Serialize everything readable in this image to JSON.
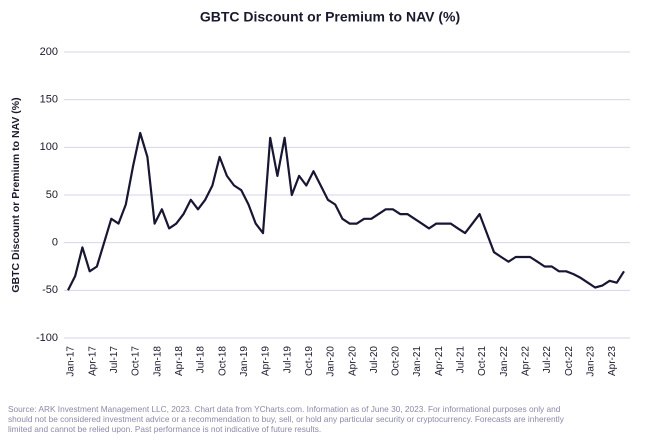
{
  "chart_data": {
    "type": "line",
    "title": "GBTC Discount or Premium to NAV (%)",
    "y_label": "GBTC Discount or Premium to NAV (%)",
    "categories": [
      "Jan-17",
      null,
      null,
      "Apr-17",
      null,
      null,
      "Jul-17",
      null,
      null,
      "Oct-17",
      null,
      null,
      "Jan-18",
      null,
      null,
      "Apr-18",
      null,
      null,
      "Jul-18",
      null,
      null,
      "Oct-18",
      null,
      null,
      "Jan-19",
      null,
      null,
      "Apr-19",
      null,
      null,
      "Jul-19",
      null,
      null,
      "Oct-19",
      null,
      null,
      "Jan-20",
      null,
      null,
      "Apr-20",
      null,
      null,
      "Jul-20",
      null,
      null,
      "Oct-20",
      null,
      null,
      "Jan-21",
      null,
      null,
      "Apr-21",
      null,
      null,
      "Jul-21",
      null,
      null,
      "Oct-21",
      null,
      null,
      "Jan-22",
      null,
      null,
      "Apr-22",
      null,
      null,
      "Jul-22",
      null,
      null,
      "Oct-22",
      null,
      null,
      "Jan-23",
      null,
      null,
      "Apr-23",
      null,
      null
    ],
    "series": [
      {
        "name": "GBTC Discount or Premium to NAV",
        "color": "#171733",
        "values": [
          -50,
          -35,
          -5,
          -30,
          -25,
          0,
          25,
          20,
          40,
          80,
          115,
          90,
          20,
          35,
          15,
          20,
          30,
          45,
          35,
          45,
          60,
          90,
          70,
          60,
          55,
          40,
          20,
          10,
          110,
          70,
          110,
          50,
          70,
          60,
          75,
          60,
          45,
          40,
          25,
          20,
          20,
          25,
          25,
          30,
          35,
          35,
          30,
          30,
          25,
          20,
          15,
          20,
          20,
          20,
          15,
          10,
          20,
          30,
          10,
          -10,
          -15,
          -20,
          -15,
          -15,
          -15,
          -20,
          -25,
          -25,
          -30,
          -30,
          -33,
          -37,
          -42,
          -47,
          -45,
          -40,
          -42,
          -30
        ]
      }
    ],
    "ylim": [
      -100,
      200
    ],
    "yticks": [
      -100,
      -50,
      0,
      50,
      100,
      150,
      200
    ],
    "grid": true,
    "source": [
      "Source: ARK Investment Management LLC, 2023. Chart data from YCharts.com. Information as of June 30, 2023. For informational purposes only and",
      "should not be considered investment advice or a recommendation to buy, sell, or hold any particular security or cryptocurrency. Forecasts are inherently",
      "limited and cannot be relied upon. Past performance is not indicative of future results."
    ]
  }
}
